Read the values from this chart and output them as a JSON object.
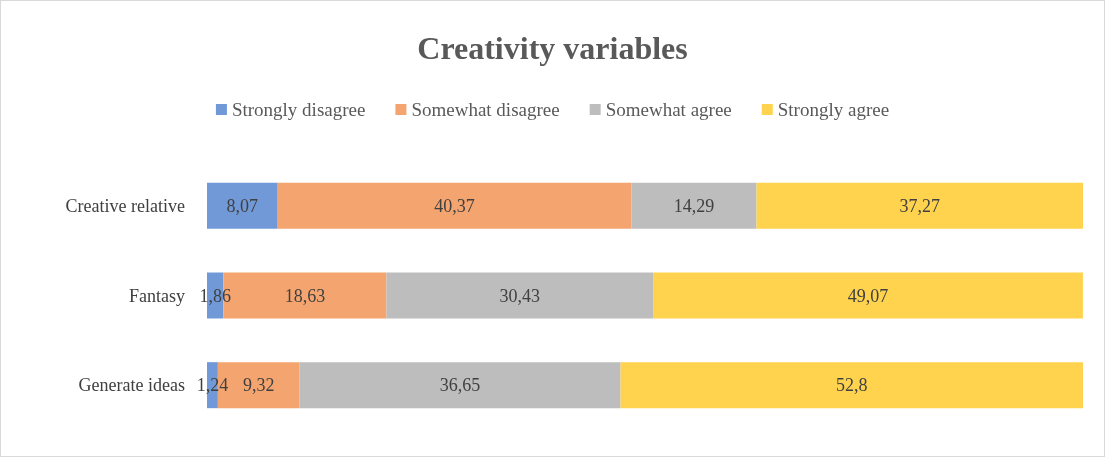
{
  "chart_data": {
    "type": "bar",
    "title": "Creativity variables",
    "orientation": "horizontal",
    "stacked": true,
    "legend": "top",
    "categories": [
      "Creative relative",
      "Fantasy",
      "Generate ideas"
    ],
    "xlim": [
      0,
      100
    ],
    "series": [
      {
        "name": "Strongly disagree",
        "color": "#7199d8",
        "values": [
          8.07,
          1.86,
          1.24
        ],
        "value_labels": [
          "8,07",
          "1,86",
          "1,24"
        ]
      },
      {
        "name": "Somewhat disagree",
        "color": "#f4a56f",
        "values": [
          40.37,
          18.63,
          9.32
        ],
        "value_labels": [
          "40,37",
          "18,63",
          "9,32"
        ]
      },
      {
        "name": "Somewhat agree",
        "color": "#bdbdbd",
        "values": [
          14.29,
          30.43,
          36.65
        ],
        "value_labels": [
          "14,29",
          "30,43",
          "36,65"
        ]
      },
      {
        "name": "Strongly agree",
        "color": "#ffd34d",
        "values": [
          37.27,
          49.07,
          52.8
        ],
        "value_labels": [
          "37,27",
          "49,07",
          "52,8"
        ]
      }
    ]
  }
}
